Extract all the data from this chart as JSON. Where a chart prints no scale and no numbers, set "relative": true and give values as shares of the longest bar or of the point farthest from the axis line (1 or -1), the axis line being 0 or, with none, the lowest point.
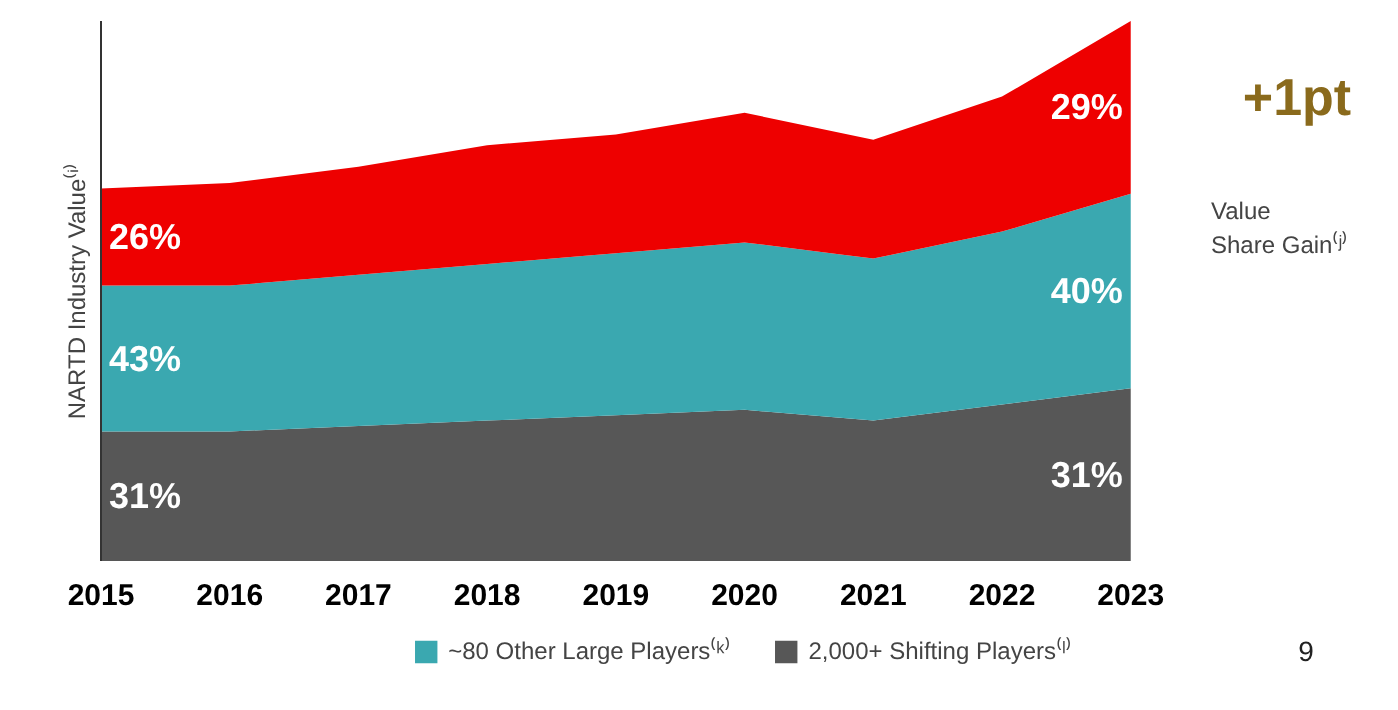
{
  "chart_data": {
    "type": "area",
    "stacked": true,
    "relative": true,
    "ylabel": "NARTD Industry Value⁽ⁱ⁾",
    "categories": [
      "2015",
      "2016",
      "2017",
      "2018",
      "2019",
      "2020",
      "2021",
      "2022",
      "2023"
    ],
    "series": [
      {
        "name": "2,000+ Shifting Players⁽ˡ⁾",
        "color": "#575757",
        "values": [
          0.24,
          0.24,
          0.25,
          0.26,
          0.27,
          0.28,
          0.26,
          0.29,
          0.32
        ]
      },
      {
        "name": "~80 Other Large Players⁽ᵏ⁾",
        "color": "#3aa8b0",
        "values": [
          0.27,
          0.27,
          0.28,
          0.29,
          0.3,
          0.31,
          0.3,
          0.32,
          0.36
        ]
      },
      {
        "color": "#ee0000",
        "values": [
          0.18,
          0.19,
          0.2,
          0.22,
          0.22,
          0.24,
          0.22,
          0.25,
          0.32
        ]
      }
    ],
    "annotations": [
      {
        "text": "31%",
        "x": "2015",
        "y": 0.12
      },
      {
        "text": "31%",
        "x": "2023",
        "y": 0.16
      },
      {
        "text": "43%",
        "x": "2015",
        "y": 0.375
      },
      {
        "text": "40%",
        "x": "2023",
        "y": 0.5
      },
      {
        "text": "26%",
        "x": "2015",
        "y": 0.6
      },
      {
        "text": "29%",
        "x": "2023",
        "y": 0.84
      },
      "+1pt",
      "Value\nShare Gain⁽ʲ⁾",
      "9"
    ],
    "legend": "bottom"
  }
}
